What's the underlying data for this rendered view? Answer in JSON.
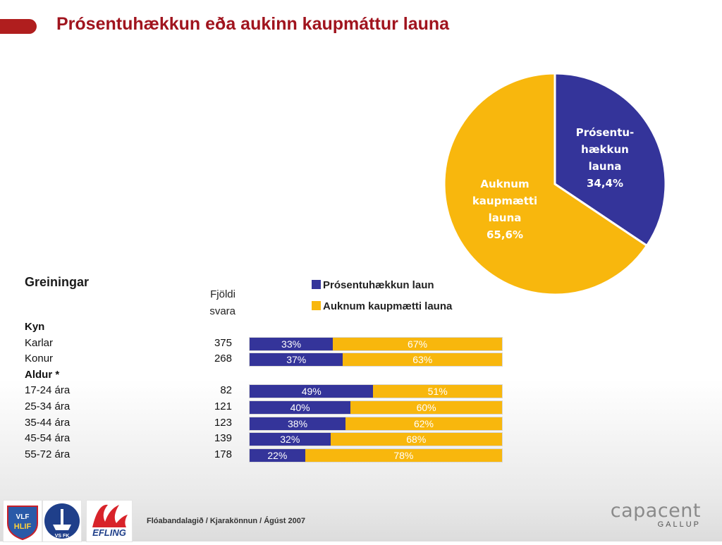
{
  "title": "Prósentuhækkun eða aukinn kaupmáttur launa",
  "chart_data": [
    {
      "type": "pie",
      "slices": [
        {
          "label_lines": [
            "Auknum",
            "kaupmætti",
            "launa"
          ],
          "value": 65.6,
          "value_label": "65,6%",
          "color": "#f8b70d"
        },
        {
          "label_lines": [
            "Prósentu-",
            "hækkun",
            "launa"
          ],
          "value": 34.4,
          "value_label": "34,4%",
          "color": "#34349a"
        }
      ]
    },
    {
      "type": "bar",
      "orientation": "horizontal-stacked",
      "title": "Greiningar",
      "count_header": [
        "Fjöldi",
        "svara"
      ],
      "legend": [
        {
          "name": "Prósentuhækkun laun",
          "color": "#34349a"
        },
        {
          "name": "Auknum kaupmætti launa",
          "color": "#f8b70d"
        }
      ],
      "groups": [
        {
          "label": "Kyn",
          "rows": [
            {
              "label": "Karlar",
              "count": "375",
              "values": [
                33,
                67
              ],
              "value_labels": [
                "33%",
                "67%"
              ]
            },
            {
              "label": "Konur",
              "count": "268",
              "values": [
                37,
                63
              ],
              "value_labels": [
                "37%",
                "63%"
              ]
            }
          ]
        },
        {
          "label": "Aldur *",
          "rows": [
            {
              "label": "17-24 ára",
              "count": "82",
              "values": [
                49,
                51
              ],
              "value_labels": [
                "49%",
                "51%"
              ]
            },
            {
              "label": "25-34 ára",
              "count": "121",
              "values": [
                40,
                60
              ],
              "value_labels": [
                "40%",
                "60%"
              ]
            },
            {
              "label": "35-44 ára",
              "count": "123",
              "values": [
                38,
                62
              ],
              "value_labels": [
                "38%",
                "62%"
              ]
            },
            {
              "label": "45-54 ára",
              "count": "139",
              "values": [
                32,
                68
              ],
              "value_labels": [
                "32%",
                "68%"
              ]
            },
            {
              "label": "55-72 ára",
              "count": "178",
              "values": [
                22,
                78
              ],
              "value_labels": [
                "22%",
                "78%"
              ]
            }
          ]
        }
      ]
    }
  ],
  "footer": {
    "text": "Flóabandalagið  / Kjarakönnun / Ágúst 2007",
    "logos": [
      {
        "name": "vlf-hlif-logo",
        "lettering": "VLF HLIF"
      },
      {
        "name": "vsfk-logo",
        "lettering": "VS FK"
      },
      {
        "name": "efling-logo",
        "lettering": "EFLING"
      }
    ],
    "brand": {
      "name": "capacent",
      "sub": "GALLUP"
    }
  }
}
